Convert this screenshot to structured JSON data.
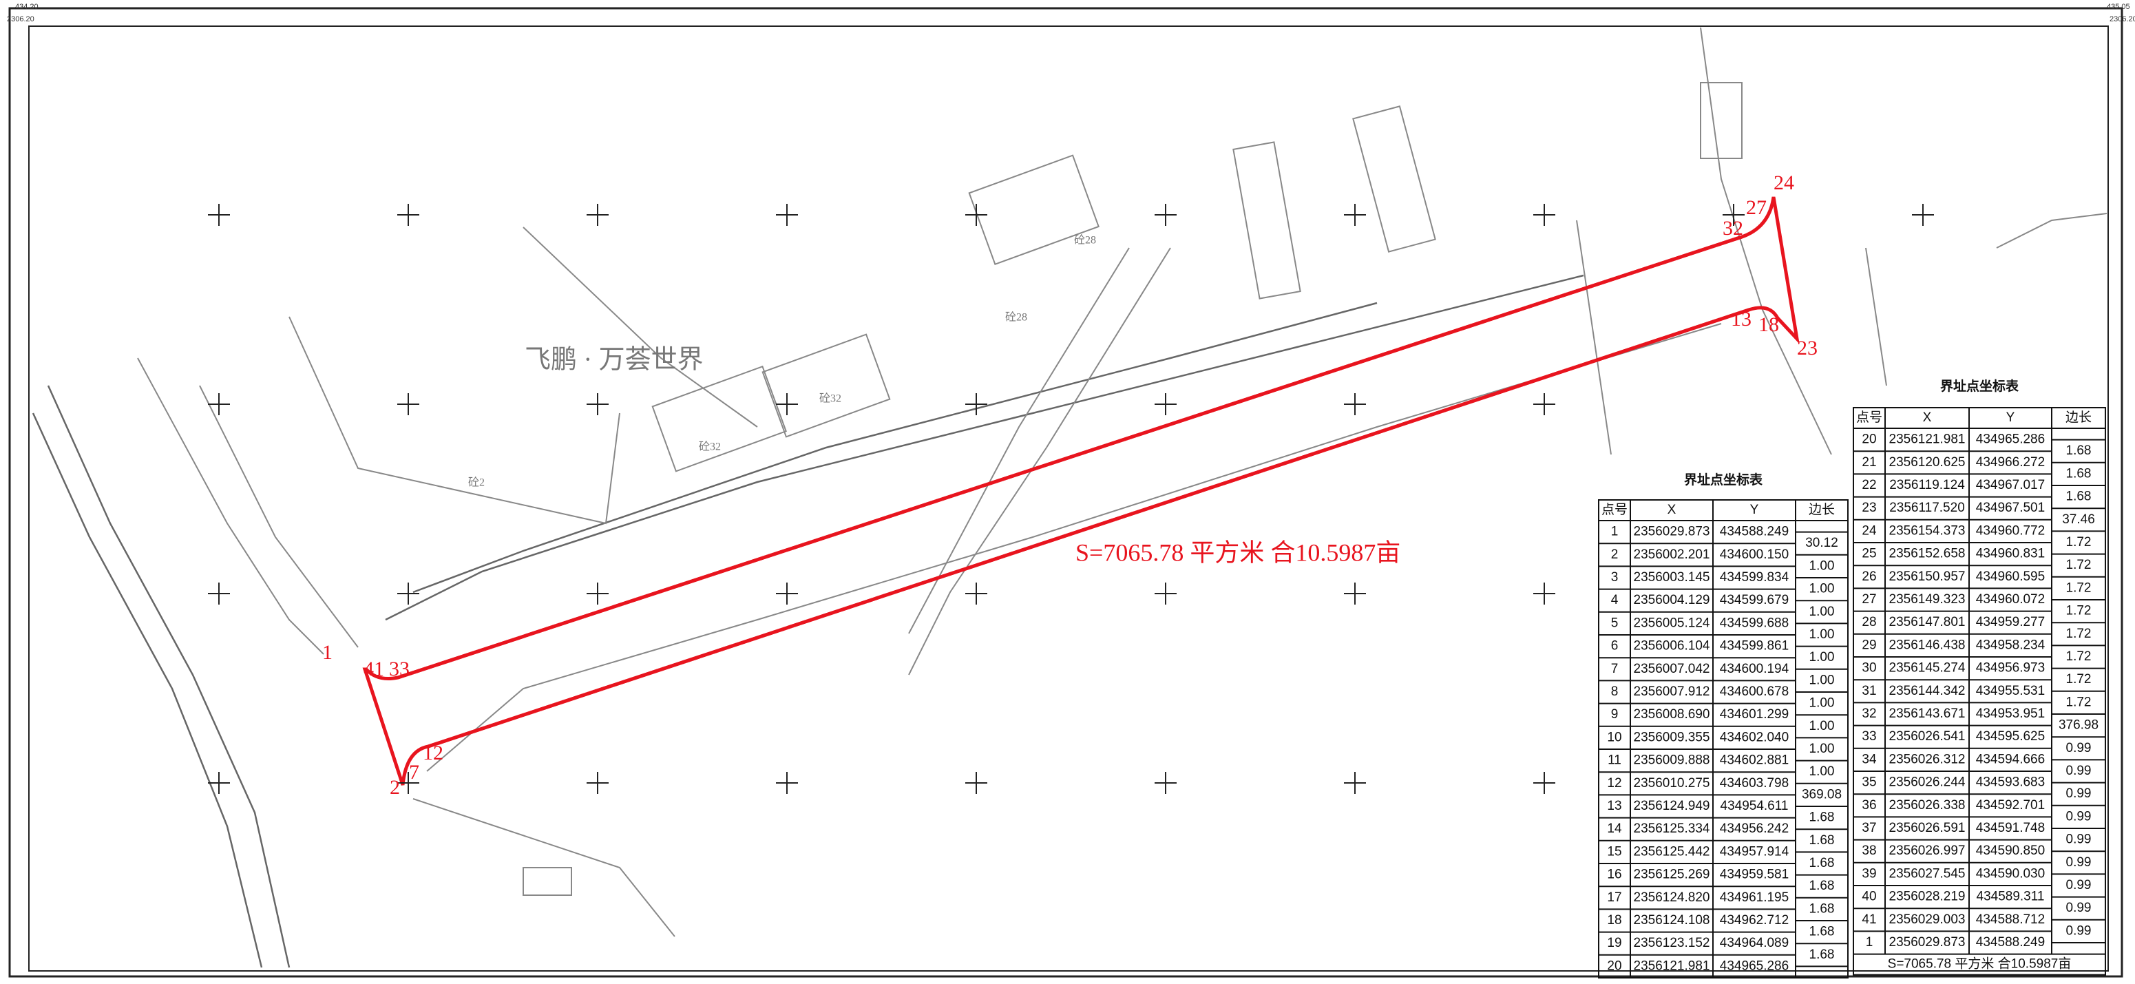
{
  "corners": [
    "434.20",
    "2306.20",
    "435.05",
    "2306.20"
  ],
  "place_name": "飞鹏 · 万荟世界",
  "building_labels": [
    "砼28",
    "砼28",
    "砼32",
    "砼32",
    "砼2"
  ],
  "area_label": "S=7065.78 平方米 合10.5987亩",
  "point_labels": [
    "1",
    "41",
    "33",
    "2",
    "7",
    "12",
    "13",
    "18",
    "23",
    "24",
    "27",
    "32"
  ],
  "tables": [
    {
      "title": "界址点坐标表",
      "headers": [
        "点号",
        "X",
        "Y",
        "边长"
      ],
      "rows": [
        [
          "1",
          "2356029.873",
          "434588.249"
        ],
        [
          "2",
          "2356002.201",
          "434600.150"
        ],
        [
          "3",
          "2356003.145",
          "434599.834"
        ],
        [
          "4",
          "2356004.129",
          "434599.679"
        ],
        [
          "5",
          "2356005.124",
          "434599.688"
        ],
        [
          "6",
          "2356006.104",
          "434599.861"
        ],
        [
          "7",
          "2356007.042",
          "434600.194"
        ],
        [
          "8",
          "2356007.912",
          "434600.678"
        ],
        [
          "9",
          "2356008.690",
          "434601.299"
        ],
        [
          "10",
          "2356009.355",
          "434602.040"
        ],
        [
          "11",
          "2356009.888",
          "434602.881"
        ],
        [
          "12",
          "2356010.275",
          "434603.798"
        ],
        [
          "13",
          "2356124.949",
          "434954.611"
        ],
        [
          "14",
          "2356125.334",
          "434956.242"
        ],
        [
          "15",
          "2356125.442",
          "434957.914"
        ],
        [
          "16",
          "2356125.269",
          "434959.581"
        ],
        [
          "17",
          "2356124.820",
          "434961.195"
        ],
        [
          "18",
          "2356124.108",
          "434962.712"
        ],
        [
          "19",
          "2356123.152",
          "434964.089"
        ],
        [
          "20",
          "2356121.981",
          "434965.286"
        ]
      ],
      "edges": [
        "30.12",
        "1.00",
        "1.00",
        "1.00",
        "1.00",
        "1.00",
        "1.00",
        "1.00",
        "1.00",
        "1.00",
        "1.00",
        "369.08",
        "1.68",
        "1.68",
        "1.68",
        "1.68",
        "1.68",
        "1.68",
        "1.68"
      ]
    },
    {
      "title": "界址点坐标表",
      "headers": [
        "点号",
        "X",
        "Y",
        "边长"
      ],
      "rows": [
        [
          "20",
          "2356121.981",
          "434965.286"
        ],
        [
          "21",
          "2356120.625",
          "434966.272"
        ],
        [
          "22",
          "2356119.124",
          "434967.017"
        ],
        [
          "23",
          "2356117.520",
          "434967.501"
        ],
        [
          "24",
          "2356154.373",
          "434960.772"
        ],
        [
          "25",
          "2356152.658",
          "434960.831"
        ],
        [
          "26",
          "2356150.957",
          "434960.595"
        ],
        [
          "27",
          "2356149.323",
          "434960.072"
        ],
        [
          "28",
          "2356147.801",
          "434959.277"
        ],
        [
          "29",
          "2356146.438",
          "434958.234"
        ],
        [
          "30",
          "2356145.274",
          "434956.973"
        ],
        [
          "31",
          "2356144.342",
          "434955.531"
        ],
        [
          "32",
          "2356143.671",
          "434953.951"
        ],
        [
          "33",
          "2356026.541",
          "434595.625"
        ],
        [
          "34",
          "2356026.312",
          "434594.666"
        ],
        [
          "35",
          "2356026.244",
          "434593.683"
        ],
        [
          "36",
          "2356026.338",
          "434592.701"
        ],
        [
          "37",
          "2356026.591",
          "434591.748"
        ],
        [
          "38",
          "2356026.997",
          "434590.850"
        ],
        [
          "39",
          "2356027.545",
          "434590.030"
        ],
        [
          "40",
          "2356028.219",
          "434589.311"
        ],
        [
          "41",
          "2356029.003",
          "434588.712"
        ],
        [
          "1",
          "2356029.873",
          "434588.249"
        ]
      ],
      "edges": [
        "1.68",
        "1.68",
        "1.68",
        "37.46",
        "1.72",
        "1.72",
        "1.72",
        "1.72",
        "1.72",
        "1.72",
        "1.72",
        "1.72",
        "376.98",
        "0.99",
        "0.99",
        "0.99",
        "0.99",
        "0.99",
        "0.99",
        "0.99",
        "0.99",
        "0.99"
      ],
      "footer": "S=7065.78 平方米 合10.5987亩"
    }
  ]
}
